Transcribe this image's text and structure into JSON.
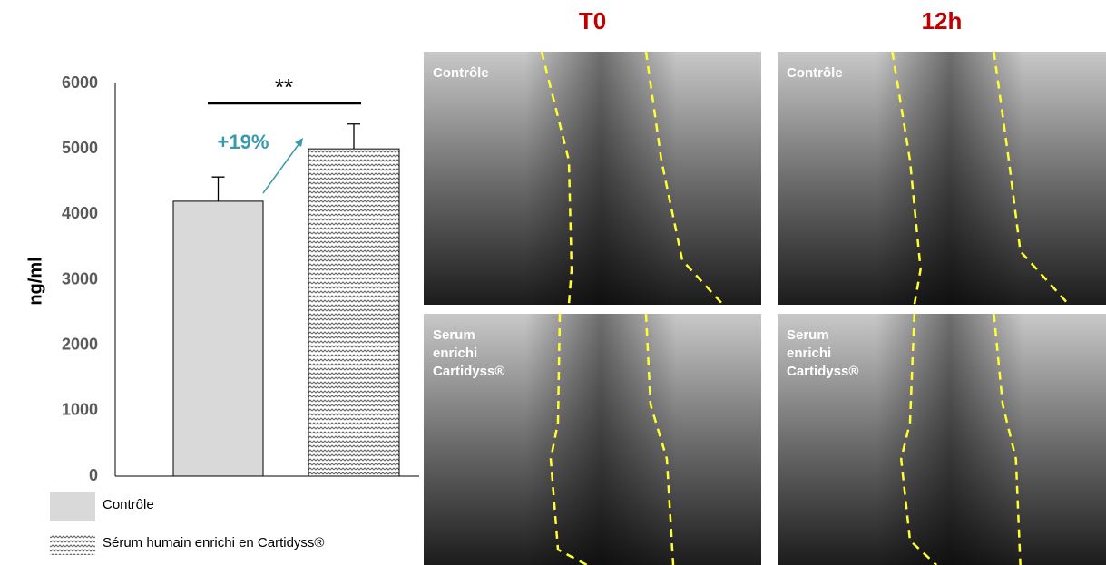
{
  "chart_data": {
    "type": "bar",
    "series": [
      {
        "name": "Contrôle",
        "color": "#d9d9d9",
        "values": [
          4200
        ],
        "errors": [
          370
        ]
      },
      {
        "name": "Sérum humain enrichi en Cartidyss®",
        "color": "#808080",
        "pattern": "hatch",
        "values": [
          5000
        ],
        "errors": [
          380
        ]
      }
    ],
    "ylabel": "ng/ml",
    "ylim": [
      0,
      6000
    ],
    "yticks": [
      0,
      1000,
      2000,
      3000,
      4000,
      5000,
      6000
    ],
    "significance": "**",
    "annotation": "+19%",
    "annotation_color": "#3a9aad"
  },
  "images": {
    "columns": [
      "T0",
      "12h"
    ],
    "rows": [
      {
        "label_lines": [
          "Contrôle"
        ]
      },
      {
        "label_lines": [
          "Serum",
          "enrichi",
          "Cartidyss®"
        ]
      }
    ]
  }
}
